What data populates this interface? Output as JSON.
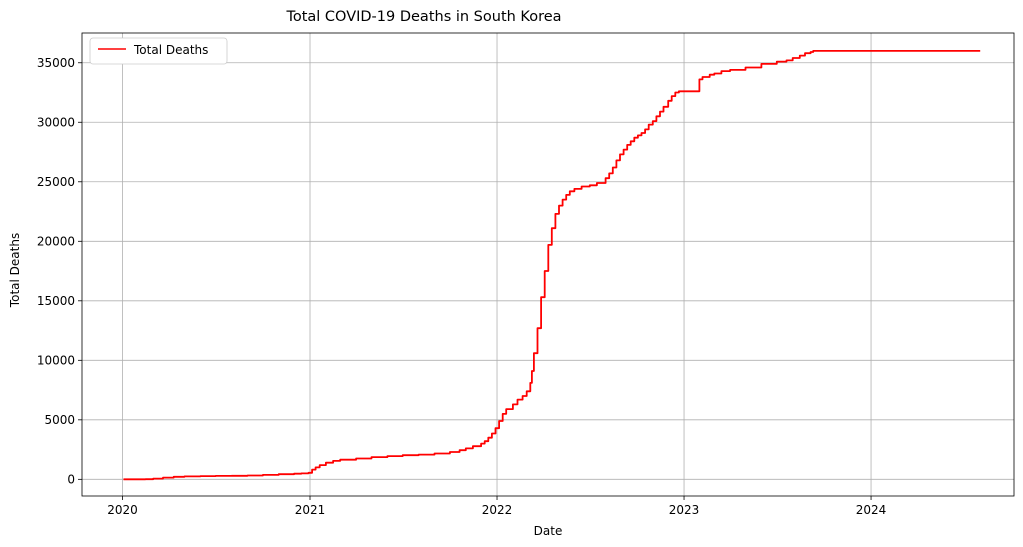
{
  "chart_data": {
    "type": "line",
    "title": "Total COVID-19 Deaths in South Korea",
    "xlabel": "Date",
    "ylabel": "Total Deaths",
    "x_ticks": [
      "2020",
      "2021",
      "2022",
      "2023",
      "2024"
    ],
    "y_ticks": [
      0,
      5000,
      10000,
      15000,
      20000,
      25000,
      30000,
      35000
    ],
    "y_tick_labels": [
      "0",
      "5000",
      "10000",
      "15000",
      "20000",
      "25000",
      "30000",
      "35000"
    ],
    "xlim": [
      "2019-10-14",
      "2024-10-06"
    ],
    "ylim": [
      -1400,
      37500
    ],
    "grid": true,
    "legend_position": "top-left",
    "series": [
      {
        "name": "Total Deaths",
        "color": "#ff0000",
        "x": [
          "2020-01-03",
          "2020-02-15",
          "2020-03-01",
          "2020-03-20",
          "2020-04-10",
          "2020-05-01",
          "2020-06-01",
          "2020-07-01",
          "2020-08-01",
          "2020-09-01",
          "2020-10-01",
          "2020-11-01",
          "2020-12-01",
          "2020-12-15",
          "2020-12-29",
          "2021-01-05",
          "2021-01-12",
          "2021-01-20",
          "2021-02-01",
          "2021-02-15",
          "2021-03-01",
          "2021-04-01",
          "2021-05-01",
          "2021-06-01",
          "2021-07-01",
          "2021-08-01",
          "2021-09-01",
          "2021-10-01",
          "2021-10-20",
          "2021-11-01",
          "2021-11-15",
          "2021-12-01",
          "2021-12-08",
          "2021-12-15",
          "2021-12-22",
          "2021-12-29",
          "2022-01-05",
          "2022-01-12",
          "2022-01-19",
          "2022-02-01",
          "2022-02-10",
          "2022-02-20",
          "2022-02-28",
          "2022-03-07",
          "2022-03-10",
          "2022-03-14",
          "2022-03-21",
          "2022-03-28",
          "2022-04-04",
          "2022-04-11",
          "2022-04-18",
          "2022-04-25",
          "2022-05-02",
          "2022-05-09",
          "2022-05-16",
          "2022-05-23",
          "2022-06-01",
          "2022-06-15",
          "2022-07-01",
          "2022-07-15",
          "2022-08-01",
          "2022-08-08",
          "2022-08-15",
          "2022-08-22",
          "2022-08-29",
          "2022-09-05",
          "2022-09-12",
          "2022-09-19",
          "2022-09-26",
          "2022-10-03",
          "2022-10-10",
          "2022-10-17",
          "2022-10-24",
          "2022-11-01",
          "2022-11-08",
          "2022-11-15",
          "2022-11-22",
          "2022-12-01",
          "2022-12-08",
          "2022-12-15",
          "2022-12-22",
          "2022-12-29",
          "2023-01-10",
          "2023-01-31",
          "2023-02-06",
          "2023-02-20",
          "2023-03-01",
          "2023-03-15",
          "2023-04-01",
          "2023-05-01",
          "2023-06-01",
          "2023-07-01",
          "2023-07-20",
          "2023-08-01",
          "2023-08-15",
          "2023-08-25",
          "2023-09-05",
          "2023-09-10",
          "2023-09-20",
          "2024-08-01"
        ],
        "y": [
          0,
          10,
          60,
          150,
          210,
          250,
          270,
          285,
          300,
          320,
          370,
          430,
          470,
          500,
          550,
          820,
          1000,
          1200,
          1400,
          1550,
          1650,
          1750,
          1870,
          1950,
          2030,
          2080,
          2170,
          2300,
          2450,
          2600,
          2780,
          3000,
          3200,
          3500,
          3850,
          4300,
          4900,
          5500,
          5900,
          6300,
          6700,
          7000,
          7400,
          8100,
          9100,
          10600,
          12700,
          15300,
          17500,
          19700,
          21100,
          22300,
          23000,
          23500,
          23900,
          24200,
          24400,
          24600,
          24700,
          24900,
          25300,
          25700,
          26200,
          26800,
          27300,
          27700,
          28100,
          28400,
          28700,
          28900,
          29100,
          29400,
          29800,
          30100,
          30500,
          30900,
          31300,
          31800,
          32200,
          32500,
          32600,
          32600,
          32600,
          33600,
          33800,
          34000,
          34100,
          34300,
          34400,
          34600,
          34900,
          35100,
          35200,
          35400,
          35600,
          35800,
          35900,
          36000,
          36000,
          36000
        ]
      }
    ]
  }
}
